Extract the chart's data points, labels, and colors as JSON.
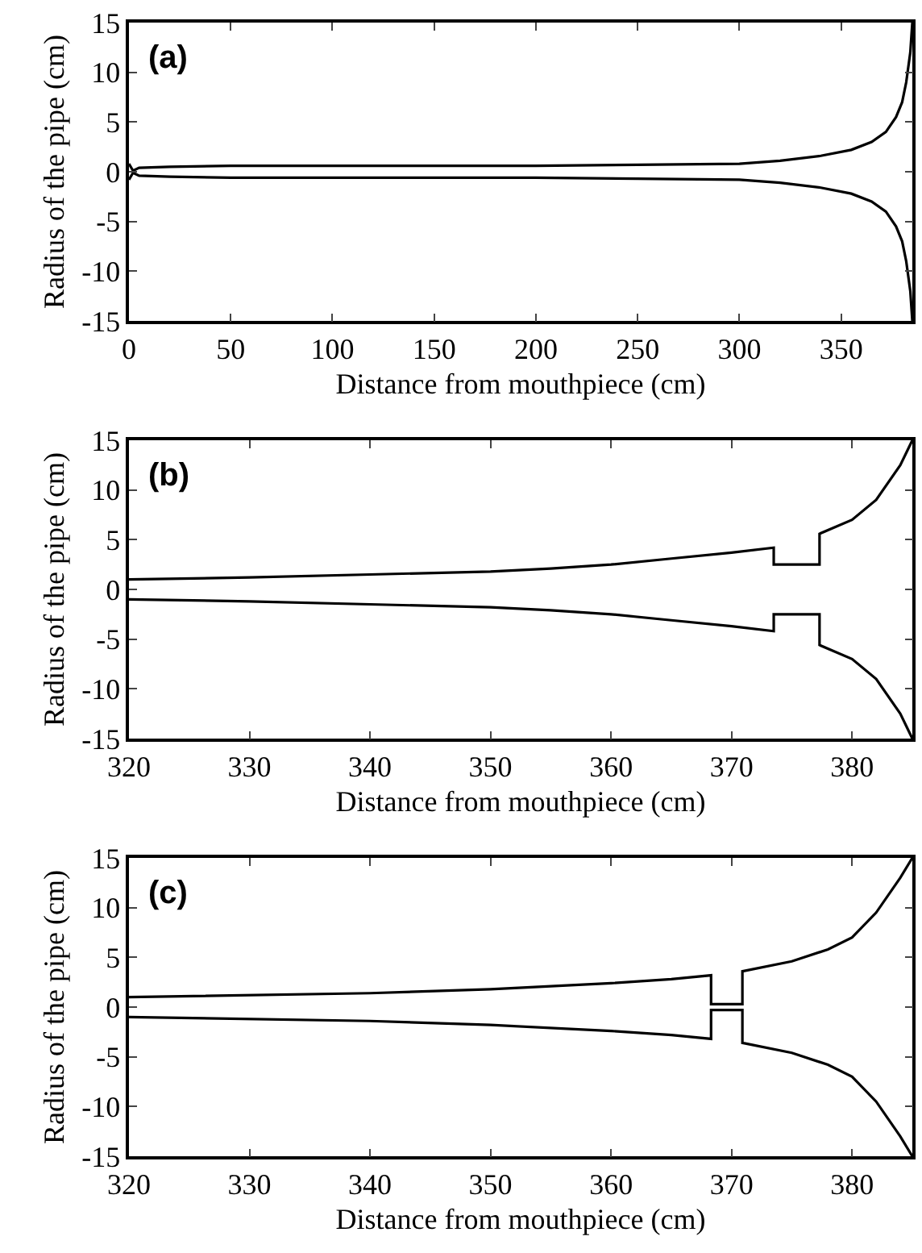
{
  "chart_data": [
    {
      "type": "line",
      "xlabel": "Distance from mouthpiece (cm)",
      "ylabel": "Radius of the pipe (cm)",
      "annotations": [
        "(a)"
      ],
      "xlim": [
        0,
        385
      ],
      "xticks": [
        0,
        50,
        100,
        150,
        200,
        250,
        300,
        350
      ],
      "ylim": [
        -15,
        15
      ],
      "yticks": [
        -15,
        -10,
        -5,
        0,
        5,
        10,
        15
      ],
      "marker": "none",
      "line_style": "solid",
      "series": [
        {
          "color": "#000000",
          "x": [
            0,
            2,
            5,
            20,
            50,
            100,
            200,
            250,
            300,
            320,
            340,
            355,
            365,
            372,
            377,
            380,
            382,
            384,
            385
          ],
          "values": [
            0.8,
            0.1,
            0.4,
            0.5,
            0.6,
            0.6,
            0.6,
            0.7,
            0.8,
            1.1,
            1.6,
            2.2,
            3.0,
            4.0,
            5.5,
            7,
            9,
            12,
            15
          ]
        },
        {
          "color": "#000000",
          "x": [
            0,
            2,
            5,
            20,
            50,
            100,
            200,
            250,
            300,
            320,
            340,
            355,
            365,
            372,
            377,
            380,
            382,
            384,
            385
          ],
          "values": [
            -0.8,
            -0.1,
            -0.4,
            -0.5,
            -0.6,
            -0.6,
            -0.6,
            -0.7,
            -0.8,
            -1.1,
            -1.6,
            -2.2,
            -3.0,
            -4.0,
            -5.5,
            -7,
            -9,
            -12,
            -15
          ]
        }
      ]
    },
    {
      "type": "line",
      "xlabel": "Distance from mouthpiece (cm)",
      "ylabel": "Radius of the pipe (cm)",
      "annotations": [
        "(b)"
      ],
      "xlim": [
        320,
        385
      ],
      "xticks": [
        320,
        330,
        340,
        350,
        360,
        370,
        380
      ],
      "ylim": [
        -15,
        15
      ],
      "yticks": [
        -15,
        -10,
        -5,
        0,
        5,
        10,
        15
      ],
      "marker": "none",
      "line_style": "solid",
      "series": [
        {
          "color": "#000000",
          "x": [
            320,
            330,
            340,
            350,
            355,
            360,
            365,
            370,
            373.5,
            373.5,
            377.3,
            377.3,
            380,
            382,
            384,
            385
          ],
          "values": [
            1.0,
            1.2,
            1.5,
            1.8,
            2.1,
            2.5,
            3.1,
            3.7,
            4.2,
            2.5,
            2.5,
            5.6,
            7,
            9,
            12.5,
            15
          ]
        },
        {
          "color": "#000000",
          "x": [
            320,
            330,
            340,
            350,
            355,
            360,
            365,
            370,
            373.5,
            373.5,
            377.3,
            377.3,
            380,
            382,
            384,
            385
          ],
          "values": [
            -1.0,
            -1.2,
            -1.5,
            -1.8,
            -2.1,
            -2.5,
            -3.1,
            -3.7,
            -4.2,
            -2.5,
            -2.5,
            -5.6,
            -7,
            -9,
            -12.5,
            -15
          ]
        }
      ]
    },
    {
      "type": "line",
      "xlabel": "Distance from mouthpiece (cm)",
      "ylabel": "Radius of the pipe (cm)",
      "annotations": [
        "(c)"
      ],
      "xlim": [
        320,
        385
      ],
      "xticks": [
        320,
        330,
        340,
        350,
        360,
        370,
        380
      ],
      "ylim": [
        -15,
        15
      ],
      "yticks": [
        -15,
        -10,
        -5,
        0,
        5,
        10,
        15
      ],
      "marker": "none",
      "line_style": "solid",
      "series": [
        {
          "color": "#000000",
          "x": [
            320,
            340,
            350,
            360,
            365,
            368.3,
            368.3,
            370.9,
            370.9,
            375,
            378,
            380,
            382,
            384,
            385
          ],
          "values": [
            1.0,
            1.4,
            1.8,
            2.4,
            2.8,
            3.2,
            0.3,
            0.3,
            3.6,
            4.6,
            5.8,
            7,
            9.5,
            13,
            15
          ]
        },
        {
          "color": "#000000",
          "x": [
            320,
            340,
            350,
            360,
            365,
            368.3,
            368.3,
            370.9,
            370.9,
            375,
            378,
            380,
            382,
            384,
            385
          ],
          "values": [
            -1.0,
            -1.4,
            -1.8,
            -2.4,
            -2.8,
            -3.2,
            -0.3,
            -0.3,
            -3.6,
            -4.6,
            -5.8,
            -7,
            -9.5,
            -13,
            -15
          ]
        }
      ]
    }
  ]
}
